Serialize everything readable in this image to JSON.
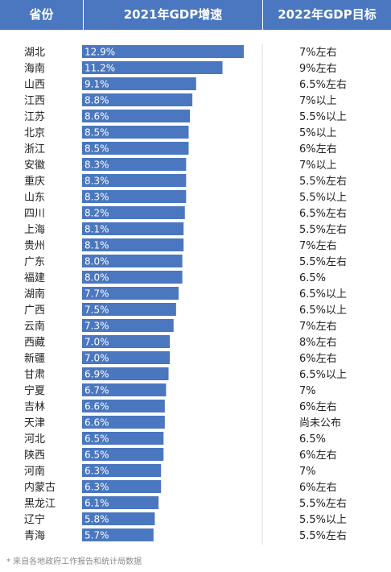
{
  "header": {
    "col_province": "省份",
    "col_growth": "2021年GDP增速",
    "col_target": "2022年GDP目标"
  },
  "colors": {
    "header_bg": "#4a77bf",
    "bar": "#4a77bf",
    "bar_label": "#ffffff",
    "text": "#222222"
  },
  "chart_data": {
    "type": "bar",
    "orientation": "horizontal",
    "title": "",
    "categories": [
      "湖北",
      "海南",
      "山西",
      "江西",
      "江苏",
      "北京",
      "浙江",
      "安徽",
      "重庆",
      "山东",
      "四川",
      "上海",
      "贵州",
      "广东",
      "福建",
      "湖南",
      "广西",
      "云南",
      "西藏",
      "新疆",
      "甘肃",
      "宁夏",
      "吉林",
      "天津",
      "河北",
      "陕西",
      "河南",
      "内蒙古",
      "黑龙江",
      "辽宁",
      "青海"
    ],
    "values": [
      12.9,
      11.2,
      9.1,
      8.8,
      8.6,
      8.5,
      8.5,
      8.3,
      8.3,
      8.3,
      8.2,
      8.1,
      8.1,
      8.0,
      8.0,
      7.7,
      7.5,
      7.3,
      7.0,
      7.0,
      6.9,
      6.7,
      6.6,
      6.6,
      6.5,
      6.5,
      6.3,
      6.3,
      6.1,
      5.8,
      5.7
    ],
    "value_labels": [
      "12.9%",
      "11.2%",
      "9.1%",
      "8.8%",
      "8.6%",
      "8.5%",
      "8.5%",
      "8.3%",
      "8.3%",
      "8.3%",
      "8.2%",
      "8.1%",
      "8.1%",
      "8.0%",
      "8.0%",
      "7.7%",
      "7.5%",
      "7.3%",
      "7.0%",
      "7.0%",
      "6.9%",
      "6.7%",
      "6.6%",
      "6.6%",
      "6.5%",
      "6.5%",
      "6.3%",
      "6.3%",
      "6.1%",
      "5.8%",
      "5.7%"
    ],
    "targets": [
      "7%左右",
      "9%左右",
      "6.5%左右",
      "7%以上",
      "5.5%以上",
      "5%以上",
      "6%左右",
      "7%以上",
      "5.5%左右",
      "5.5%以上",
      "6.5%左右",
      "5.5%左右",
      "7%左右",
      "5.5%左右",
      "6.5%",
      "6.5%以上",
      "6.5%以上",
      "7%左右",
      "8%左右",
      "6%左右",
      "6.5%以上",
      "7%",
      "6%左右",
      "尚未公布",
      "6.5%",
      "6%左右",
      "7%",
      "6%左右",
      "5.5%左右",
      "5.5%以上",
      "5.5%左右"
    ],
    "xlim": [
      0,
      12.9
    ]
  },
  "footnote": "* 来自各地政府工作报告和统计局数据"
}
